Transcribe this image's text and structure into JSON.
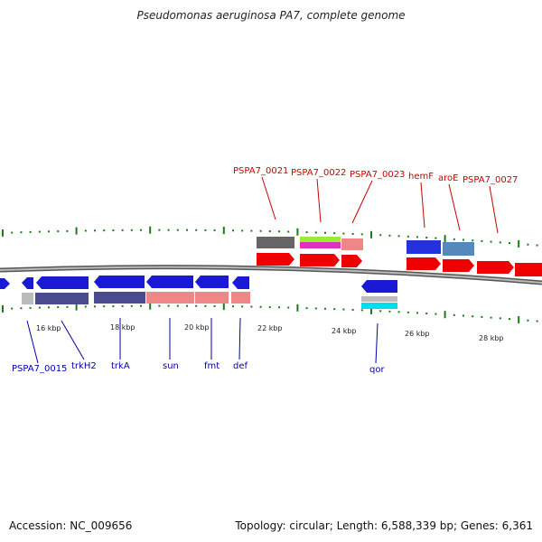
{
  "title": "Pseudomonas aeruginosa PA7, complete genome",
  "footer": {
    "accession": "Accession: NC_009656",
    "topology": "Topology: circular; Length: 6,588,339 bp; Genes: 6,361"
  },
  "scale_labels": [
    "16 kbp",
    "18 kbp",
    "20 kbp",
    "22 kbp",
    "24 kbp",
    "26 kbp",
    "28 kbp"
  ],
  "forward_genes": [
    {
      "label": "PSPA7_0021"
    },
    {
      "label": "PSPA7_0022"
    },
    {
      "label": "PSPA7_0023"
    },
    {
      "label": "hemF"
    },
    {
      "label": "aroE"
    },
    {
      "label": "PSPA7_0027"
    }
  ],
  "reverse_genes": [
    {
      "label": "PSPA7_0015"
    },
    {
      "label": "trkH2"
    },
    {
      "label": "trkA"
    },
    {
      "label": "sun"
    },
    {
      "label": "fmt"
    },
    {
      "label": "def"
    },
    {
      "label": "qor"
    }
  ],
  "colors": {
    "forward_label": "#cc0000",
    "reverse_label": "#0000aa",
    "forward_arrow": "#ee0000",
    "reverse_arrow": "#1a1ad6",
    "backbone": "#777777",
    "ticks": "#1a7a1a"
  }
}
